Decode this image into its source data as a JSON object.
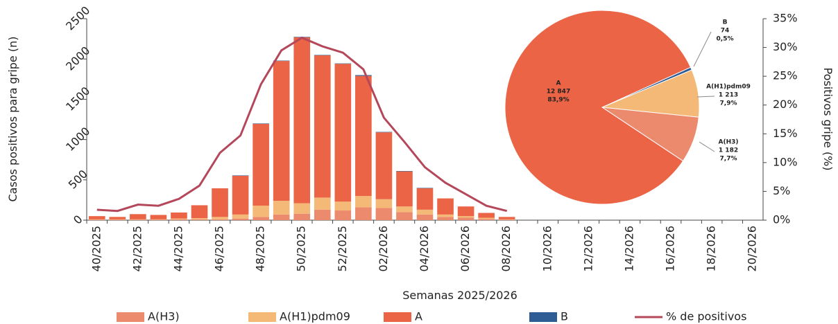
{
  "chart_data": [
    {
      "type": "bar",
      "stacked": true,
      "x_label": "Semanas 2025/2026",
      "y_label": "Casos positivos para gripe (n)",
      "y2_label": "Positivos gripe (%)",
      "categories": [
        "40/2025",
        null,
        "42/2025",
        null,
        "44/2025",
        null,
        "46/2025",
        null,
        "48/2025",
        null,
        "50/2025",
        null,
        "52/2025",
        null,
        "02/2026",
        null,
        "04/2026",
        null,
        "06/2026",
        null,
        "08/2026",
        null,
        "10/2026",
        null,
        "12/2026",
        null,
        "14/2026",
        null,
        "16/2026",
        null,
        "18/2026",
        null,
        "20/2026"
      ],
      "ylim": [
        0,
        2500
      ],
      "yticks": [
        0,
        500,
        1000,
        1500,
        2000,
        2500
      ],
      "y2lim": [
        0,
        35
      ],
      "y2ticks": [
        {
          "value": 0,
          "label": "0%"
        },
        {
          "value": 5,
          "label": "5%"
        },
        {
          "value": 10,
          "label": "10%"
        },
        {
          "value": 15,
          "label": "15%"
        },
        {
          "value": 20,
          "label": "20%"
        },
        {
          "value": 25,
          "label": "25%"
        },
        {
          "value": 30,
          "label": "30%"
        },
        {
          "value": 35,
          "label": "35%"
        }
      ],
      "series": [
        {
          "name": "A(H3)",
          "color": "#ec8a6e",
          "values": [
            5,
            5,
            5,
            5,
            10,
            10,
            10,
            20,
            40,
            70,
            80,
            130,
            120,
            160,
            150,
            100,
            70,
            40,
            30,
            15,
            5,
            null,
            null,
            null,
            null,
            null,
            null,
            null,
            null,
            null,
            null,
            null,
            null
          ]
        },
        {
          "name": "A(H1)pdm09",
          "color": "#f5b977",
          "values": [
            5,
            5,
            5,
            5,
            10,
            15,
            30,
            50,
            140,
            170,
            130,
            150,
            110,
            140,
            110,
            70,
            60,
            30,
            20,
            15,
            5,
            null,
            null,
            null,
            null,
            null,
            null,
            null,
            null,
            null,
            null,
            null,
            null
          ]
        },
        {
          "name": "A",
          "color": "#ea6445",
          "values": [
            40,
            30,
            65,
            55,
            75,
            160,
            355,
            480,
            1015,
            1735,
            2060,
            1765,
            1710,
            1490,
            830,
            435,
            265,
            200,
            120,
            60,
            30,
            null,
            null,
            null,
            null,
            null,
            null,
            null,
            null,
            null,
            null,
            null,
            null
          ]
        },
        {
          "name": "B",
          "color": "#2e5c94",
          "values": [
            0,
            0,
            0,
            0,
            0,
            0,
            0,
            5,
            5,
            5,
            5,
            5,
            5,
            10,
            5,
            5,
            5,
            0,
            0,
            0,
            0,
            null,
            null,
            null,
            null,
            null,
            null,
            null,
            null,
            null,
            null,
            null,
            null
          ]
        },
        {
          "name": "% de positivos",
          "type": "line",
          "axis": "y2",
          "color": "#b5475a",
          "values": [
            1.8,
            1.6,
            2.7,
            2.5,
            3.7,
            6.0,
            11.7,
            14.7,
            23.6,
            29.5,
            31.7,
            30.2,
            29.1,
            26.2,
            17.8,
            13.6,
            9.2,
            6.5,
            4.5,
            2.5,
            1.6,
            null,
            null,
            null,
            null,
            null,
            null,
            null,
            null,
            null,
            null,
            null,
            null
          ]
        }
      ]
    },
    {
      "type": "pie",
      "categories": [
        "B",
        "A(H1)pdm09",
        "A(H3)",
        "A"
      ],
      "values": [
        74,
        1213,
        1182,
        12847
      ],
      "value_labels": [
        "74",
        "1 213",
        "1 182",
        "12 847"
      ],
      "percent_labels": [
        "0,5%",
        "7,9%",
        "7,7%",
        "83,9%"
      ],
      "colors": [
        "#2e5c94",
        "#f5b977",
        "#ec8a6e",
        "#ea6445"
      ]
    }
  ]
}
